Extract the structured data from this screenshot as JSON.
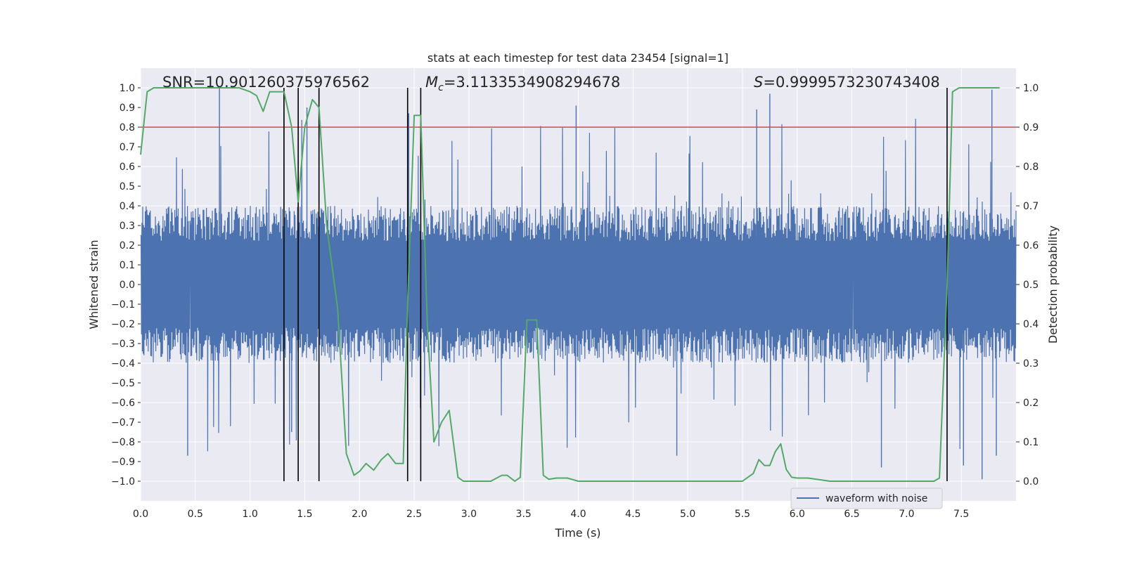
{
  "chart_data": {
    "type": "line",
    "title": "stats at each timestep for test data 23454 [signal=1]",
    "xlabel": "Time (s)",
    "ylabel_left": "Whitened strain",
    "ylabel_right": "Detection probability",
    "xlim": [
      0,
      8
    ],
    "ylim_left": [
      -1.1,
      1.1
    ],
    "ylim_right": [
      -0.05,
      1.05
    ],
    "x_ticks": [
      "0.0",
      "0.5",
      "1.0",
      "1.5",
      "2.0",
      "2.5",
      "3.0",
      "3.5",
      "4.0",
      "4.5",
      "5.0",
      "5.5",
      "6.0",
      "6.5",
      "7.0",
      "7.5"
    ],
    "y_ticks_left": [
      "1.0",
      "0.9",
      "0.8",
      "0.7",
      "0.6",
      "0.5",
      "0.4",
      "0.3",
      "0.2",
      "0.1",
      "0.0",
      "−0.1",
      "−0.2",
      "−0.3",
      "−0.4",
      "−0.5",
      "−0.6",
      "−0.7",
      "−0.8",
      "−0.9",
      "−1.0"
    ],
    "y_ticks_right": [
      "1.0",
      "0.9",
      "0.8",
      "0.7",
      "0.6",
      "0.5",
      "0.4",
      "0.3",
      "0.2",
      "0.1",
      "0.0"
    ],
    "annotations": {
      "snr": "SNR=10.901260375976562",
      "mc_symbol": "M",
      "mc_sub": "c",
      "mc_value": "=3.1133534908294678",
      "s_symbol": "S",
      "s_value": "=0.9999573230743408"
    },
    "legend": {
      "entry": "waveform with noise",
      "placement": "bottom-right"
    },
    "threshold": {
      "value": 0.9,
      "axis": "right",
      "color": "#c44e52"
    },
    "vertical_lines": [
      1.31,
      1.44,
      1.63,
      2.44,
      2.56,
      7.37
    ],
    "series": [
      {
        "name": "waveform with noise",
        "axis": "left",
        "color": "#4c72b0",
        "envelope_typical": 0.4,
        "spikes": [
          {
            "x": 0.72,
            "y": 1.0
          },
          {
            "x": 1.31,
            "y": 0.98
          },
          {
            "x": 1.52,
            "y": 0.9
          },
          {
            "x": 2.45,
            "y": 0.87
          },
          {
            "x": 3.98,
            "y": 0.91
          },
          {
            "x": 5.63,
            "y": 0.89
          },
          {
            "x": 5.75,
            "y": 0.97
          },
          {
            "x": 7.78,
            "y": 0.99
          },
          {
            "x": 0.43,
            "y": -0.87
          },
          {
            "x": 1.38,
            "y": -0.75
          },
          {
            "x": 4.9,
            "y": -0.87
          },
          {
            "x": 6.77,
            "y": -0.93
          },
          {
            "x": 7.52,
            "y": -0.92
          },
          {
            "x": 7.69,
            "y": -0.99
          },
          {
            "x": 7.82,
            "y": -0.87
          }
        ]
      },
      {
        "name": "detection probability",
        "axis": "right",
        "color": "#55a868",
        "x": [
          0.0,
          0.06,
          0.12,
          0.2,
          0.3,
          0.5,
          0.7,
          0.9,
          1.0,
          1.06,
          1.12,
          1.18,
          1.25,
          1.31,
          1.38,
          1.44,
          1.5,
          1.57,
          1.63,
          1.7,
          1.8,
          1.88,
          1.95,
          2.0,
          2.06,
          2.13,
          2.2,
          2.26,
          2.33,
          2.4,
          2.44,
          2.5,
          2.56,
          2.62,
          2.68,
          2.75,
          2.82,
          2.9,
          2.95,
          3.05,
          3.2,
          3.3,
          3.35,
          3.42,
          3.47,
          3.53,
          3.57,
          3.62,
          3.68,
          3.73,
          3.8,
          3.9,
          4.0,
          4.2,
          4.5,
          5.0,
          5.5,
          5.6,
          5.65,
          5.7,
          5.75,
          5.8,
          5.85,
          5.9,
          5.95,
          6.0,
          6.1,
          6.3,
          6.6,
          7.0,
          7.2,
          7.25,
          7.3,
          7.37,
          7.42,
          7.48,
          7.6,
          7.85
        ],
        "y": [
          0.83,
          0.99,
          1.0,
          1.0,
          1.0,
          1.0,
          1.0,
          1.0,
          0.99,
          0.98,
          0.94,
          0.99,
          0.99,
          0.99,
          0.9,
          0.71,
          0.9,
          0.97,
          0.95,
          0.65,
          0.44,
          0.07,
          0.015,
          0.025,
          0.045,
          0.028,
          0.055,
          0.07,
          0.045,
          0.045,
          0.45,
          0.93,
          0.93,
          0.4,
          0.1,
          0.15,
          0.18,
          0.01,
          0.0,
          0.0,
          0.0,
          0.015,
          0.015,
          0.0,
          0.01,
          0.41,
          0.41,
          0.41,
          0.015,
          0.005,
          0.008,
          0.008,
          0.0,
          0.0,
          0.0,
          0.0,
          0.0,
          0.02,
          0.055,
          0.04,
          0.04,
          0.075,
          0.095,
          0.03,
          0.01,
          0.008,
          0.008,
          0.0,
          0.0,
          0.0,
          0.0,
          0.0,
          0.008,
          0.5,
          0.99,
          1.0,
          1.0,
          1.0
        ]
      }
    ]
  }
}
